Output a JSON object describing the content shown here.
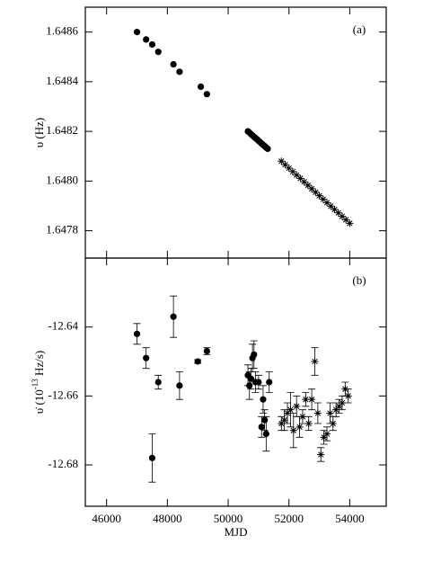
{
  "chart_data": [
    {
      "type": "scatter",
      "ylabel": "υ (Hz)",
      "annotation": "(a)",
      "xlim": [
        45300,
        55200
      ],
      "ylim": [
        1.64769,
        1.6487
      ],
      "xticks": [
        46000,
        48000,
        50000,
        52000,
        54000
      ],
      "show_xtick_labels": false,
      "yticks": [
        {
          "value": 1.6478,
          "label": "1.6478"
        },
        {
          "value": 1.648,
          "label": "1.6480"
        },
        {
          "value": 1.6482,
          "label": "1.6482"
        },
        {
          "value": 1.6484,
          "label": "1.6484"
        },
        {
          "value": 1.6486,
          "label": "1.6486"
        }
      ],
      "series": [
        {
          "marker": "circle",
          "color": "#000000",
          "x": [
            47000,
            47300,
            47500,
            47700,
            48200,
            48400,
            49100,
            49300,
            50650,
            50700,
            50750,
            50800,
            50850,
            50900,
            50950,
            51000,
            51050,
            51100,
            51150,
            51200,
            51250,
            51300
          ],
          "values": [
            1.6486,
            1.64857,
            1.64855,
            1.64852,
            1.64847,
            1.64844,
            1.64838,
            1.64835,
            1.6482,
            1.648195,
            1.648189,
            1.648184,
            1.648178,
            1.648173,
            1.648168,
            1.648162,
            1.648157,
            1.648151,
            1.648146,
            1.648141,
            1.648135,
            1.64813
          ]
        },
        {
          "marker": "star",
          "color": "#000000",
          "x": [
            51750,
            51875,
            52000,
            52125,
            52250,
            52375,
            52500,
            52625,
            52750,
            52875,
            53000,
            53125,
            53250,
            53375,
            53500,
            53625,
            53750,
            53875,
            54000
          ],
          "values": [
            1.64808,
            1.648066,
            1.648052,
            1.648038,
            1.648024,
            1.648011,
            1.647997,
            1.647983,
            1.647969,
            1.647955,
            1.647941,
            1.647927,
            1.647913,
            1.647899,
            1.647886,
            1.647872,
            1.647858,
            1.647844,
            1.64783
          ]
        }
      ]
    },
    {
      "type": "scatter",
      "ylabel": "υ̇ (10",
      "ylabel_sup": "-13",
      "ylabel_end": " Hz/s)",
      "xlabel": "MJD",
      "annotation": "(b)",
      "xlim": [
        45300,
        55200
      ],
      "ylim": [
        -12.692,
        -12.62
      ],
      "xticks": [
        46000,
        48000,
        50000,
        52000,
        54000
      ],
      "show_xtick_labels": true,
      "yticks": [
        -12.68,
        -12.66,
        -12.64
      ],
      "series": [
        {
          "marker": "circle",
          "color": "#000000",
          "x": [
            47000,
            47300,
            47500,
            47700,
            48200,
            48400,
            49000,
            49300,
            50650,
            50700,
            50750,
            50800,
            50850,
            50900,
            51000,
            51100,
            51150,
            51200,
            51250,
            51350
          ],
          "values": [
            -12.642,
            -12.649,
            -12.678,
            -12.656,
            -12.637,
            -12.657,
            -12.65,
            -12.647,
            -12.654,
            -12.657,
            -12.655,
            -12.649,
            -12.648,
            -12.656,
            -12.656,
            -12.669,
            -12.661,
            -12.667,
            -12.671,
            -12.656
          ],
          "errors": [
            0.003,
            0.003,
            0.007,
            0.002,
            0.006,
            0.004,
            0.0005,
            0.001,
            0.003,
            0.004,
            0.003,
            0.004,
            0.004,
            0.003,
            0.002,
            0.003,
            0.004,
            0.003,
            0.005,
            0.003
          ]
        },
        {
          "marker": "star",
          "color": "#000000",
          "x": [
            51750,
            51850,
            51950,
            52050,
            52150,
            52250,
            52350,
            52450,
            52550,
            52650,
            52750,
            52850,
            52950,
            53050,
            53150,
            53250,
            53350,
            53450,
            53550,
            53650,
            53750,
            53850,
            53950
          ],
          "values": [
            -12.668,
            -12.667,
            -12.665,
            -12.664,
            -12.67,
            -12.663,
            -12.669,
            -12.666,
            -12.661,
            -12.668,
            -12.661,
            -12.65,
            -12.665,
            -12.677,
            -12.672,
            -12.671,
            -12.665,
            -12.668,
            -12.664,
            -12.663,
            -12.662,
            -12.658,
            -12.66
          ],
          "errors": [
            0.002,
            0.003,
            0.003,
            0.005,
            0.005,
            0.003,
            0.003,
            0.002,
            0.002,
            0.002,
            0.003,
            0.004,
            0.003,
            0.002,
            0.002,
            0.002,
            0.003,
            0.002,
            0.002,
            0.002,
            0.002,
            0.002,
            0.002
          ]
        }
      ]
    }
  ]
}
